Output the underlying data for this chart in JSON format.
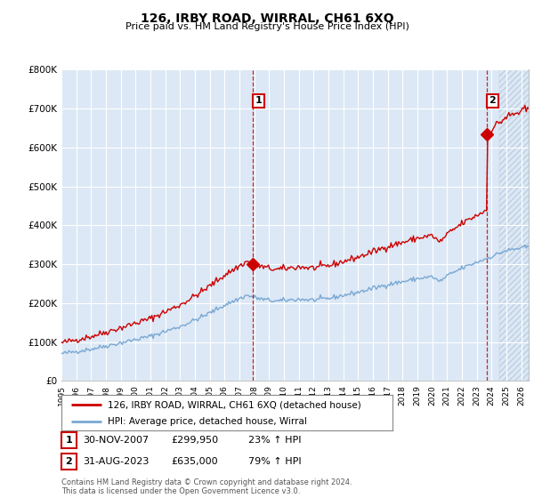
{
  "title": "126, IRBY ROAD, WIRRAL, CH61 6XQ",
  "subtitle": "Price paid vs. HM Land Registry's House Price Index (HPI)",
  "ylim": [
    0,
    800000
  ],
  "yticks": [
    0,
    100000,
    200000,
    300000,
    400000,
    500000,
    600000,
    700000,
    800000
  ],
  "xlim_start": 1995.0,
  "xlim_end": 2026.5,
  "xticks": [
    1995,
    1996,
    1997,
    1998,
    1999,
    2000,
    2001,
    2002,
    2003,
    2004,
    2005,
    2006,
    2007,
    2008,
    2009,
    2010,
    2011,
    2012,
    2013,
    2014,
    2015,
    2016,
    2017,
    2018,
    2019,
    2020,
    2021,
    2022,
    2023,
    2024,
    2025,
    2026
  ],
  "hpi_color": "#7aa8d4",
  "price_color": "#cc0000",
  "marker1_x": 2007.917,
  "marker1_y": 299950,
  "marker2_x": 2023.667,
  "marker2_y": 635000,
  "vline1_x": 2007.917,
  "vline2_x": 2023.667,
  "hatch_start": 2024.5,
  "legend_label1": "126, IRBY ROAD, WIRRAL, CH61 6XQ (detached house)",
  "legend_label2": "HPI: Average price, detached house, Wirral",
  "annotation1_label": "1",
  "annotation2_label": "2",
  "table_row1": [
    "1",
    "30-NOV-2007",
    "£299,950",
    "23% ↑ HPI"
  ],
  "table_row2": [
    "2",
    "31-AUG-2023",
    "£635,000",
    "79% ↑ HPI"
  ],
  "footer": "Contains HM Land Registry data © Crown copyright and database right 2024.\nThis data is licensed under the Open Government Licence v3.0.",
  "bg_color": "#ffffff",
  "plot_bg_color": "#dce8f5",
  "grid_color": "#ffffff",
  "hatch_color": "#c8d8e8"
}
